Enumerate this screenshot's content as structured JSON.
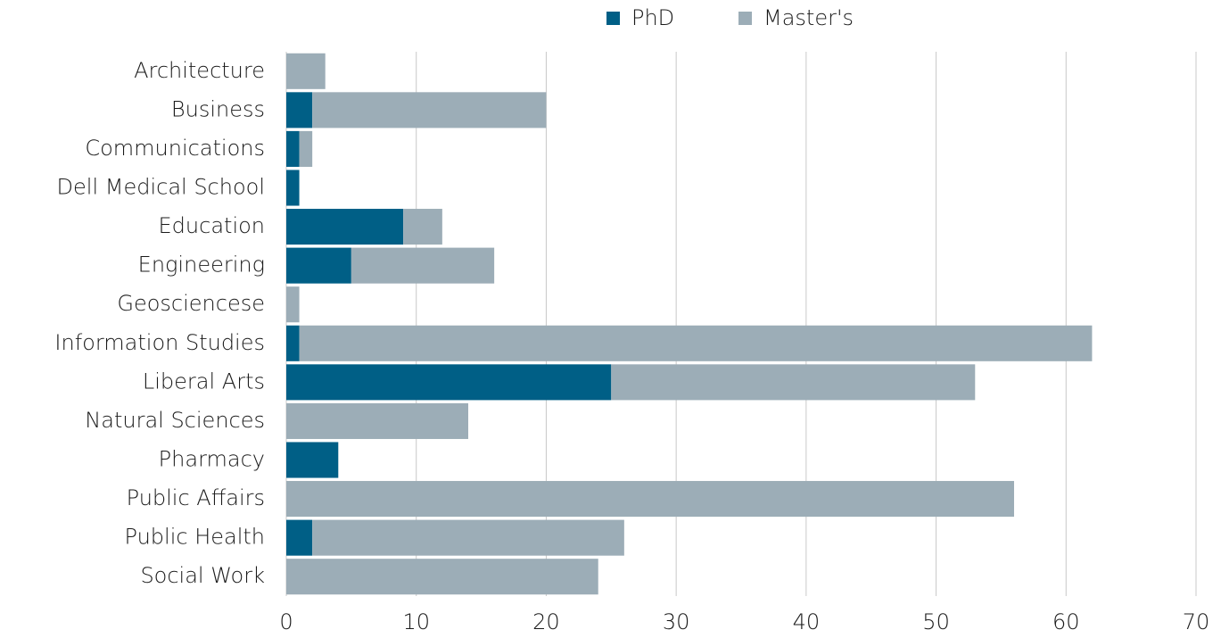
{
  "chart_data": {
    "type": "stacked-horizontal-bar",
    "categories": [
      "Architecture",
      "Business",
      "Communications",
      "Dell Medical School",
      "Education",
      "Engineering",
      "Geosciencese",
      "Information Studies",
      "Liberal Arts",
      "Natural Sciences",
      "Pharmacy",
      "Public Affairs",
      "Public Health",
      "Social Work"
    ],
    "series": [
      {
        "name": "PhD",
        "color": "#005f86",
        "values": [
          0,
          2,
          1,
          1,
          9,
          5,
          0,
          1,
          25,
          0,
          4,
          0,
          2,
          0
        ]
      },
      {
        "name": "Master's",
        "color": "#9cadb7",
        "values": [
          3,
          18,
          1,
          0,
          3,
          11,
          1,
          61,
          28,
          14,
          0,
          56,
          24,
          24
        ]
      }
    ],
    "xlim": [
      0,
      70
    ],
    "xticks": [
      0,
      10,
      20,
      30,
      40,
      50,
      60,
      70
    ],
    "grid": true,
    "legend": "top"
  }
}
